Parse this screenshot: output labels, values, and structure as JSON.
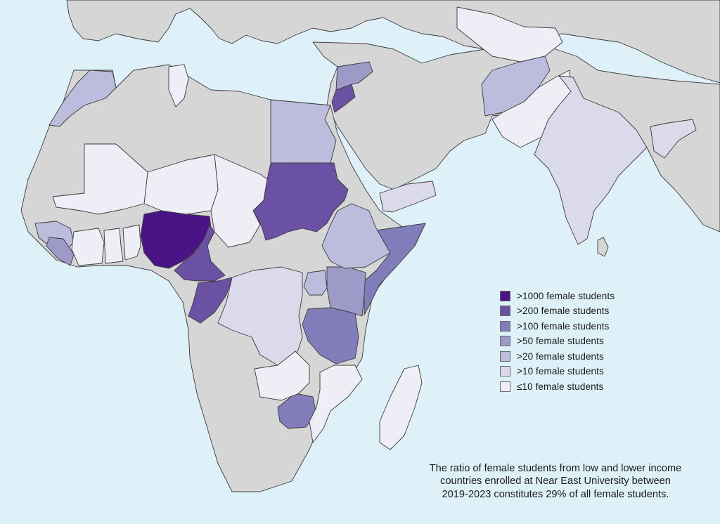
{
  "colors": {
    "sea": "#dff1f8",
    "no_data": "#d6d6d6",
    "border": "#3a3a3a"
  },
  "legend": {
    "items": [
      {
        "label": ">1000 female students",
        "color": "#4a1486"
      },
      {
        "label": ">200 female students",
        "color": "#6a51a3"
      },
      {
        "label": ">100 female students",
        "color": "#807dba"
      },
      {
        "label": ">50 female students",
        "color": "#9e9ac8"
      },
      {
        "label": ">20 female students",
        "color": "#bcbddc"
      },
      {
        "label": ">10 female students",
        "color": "#dadaeb"
      },
      {
        "label": "≤10 female students",
        "color": "#efedf5"
      }
    ]
  },
  "note": {
    "line1": "The ratio of female students from low and lower income",
    "line2": "countries enrolled at Near East University between",
    "line3": "2019-2023 constitutes 29% of all female students."
  },
  "map": {
    "countries": [
      {
        "name": "Nigeria",
        "tier": ">1000 female students"
      },
      {
        "name": "Sudan",
        "tier": ">200 female students"
      },
      {
        "name": "Cameroon",
        "tier": ">200 female students"
      },
      {
        "name": "Republic of the Congo",
        "tier": ">200 female students"
      },
      {
        "name": "Jordan",
        "tier": ">200 female students"
      },
      {
        "name": "Tanzania",
        "tier": ">100 female students"
      },
      {
        "name": "Somalia",
        "tier": ">100 female students"
      },
      {
        "name": "Zimbabwe",
        "tier": ">100 female students"
      },
      {
        "name": "Syria",
        "tier": ">100 female students"
      },
      {
        "name": "Kenya",
        "tier": ">50 female students"
      },
      {
        "name": "Liberia",
        "tier": ">50 female students"
      },
      {
        "name": "Egypt",
        "tier": ">20 female students"
      },
      {
        "name": "Morocco",
        "tier": ">20 female students"
      },
      {
        "name": "Ethiopia",
        "tier": ">20 female students"
      },
      {
        "name": "Afghanistan",
        "tier": ">20 female students"
      },
      {
        "name": "Uganda",
        "tier": ">20 female students"
      },
      {
        "name": "Guinea",
        "tier": ">20 female students"
      },
      {
        "name": "India",
        "tier": ">10 female students"
      },
      {
        "name": "DR Congo",
        "tier": ">10 female students"
      },
      {
        "name": "Yemen",
        "tier": ">10 female students"
      },
      {
        "name": "Bangladesh",
        "tier": ">10 female students"
      },
      {
        "name": "Madagascar",
        "tier": "≤10 female students"
      },
      {
        "name": "Pakistan",
        "tier": "≤10 female students"
      },
      {
        "name": "Mali",
        "tier": "≤10 female students"
      },
      {
        "name": "Niger",
        "tier": "≤10 female students"
      },
      {
        "name": "Chad",
        "tier": "≤10 female students"
      },
      {
        "name": "Tunisia",
        "tier": "≤10 female students"
      },
      {
        "name": "Mozambique",
        "tier": "≤10 female students"
      },
      {
        "name": "Zambia",
        "tier": "≤10 female students"
      },
      {
        "name": "Uzbekistan",
        "tier": "≤10 female students"
      }
    ]
  }
}
